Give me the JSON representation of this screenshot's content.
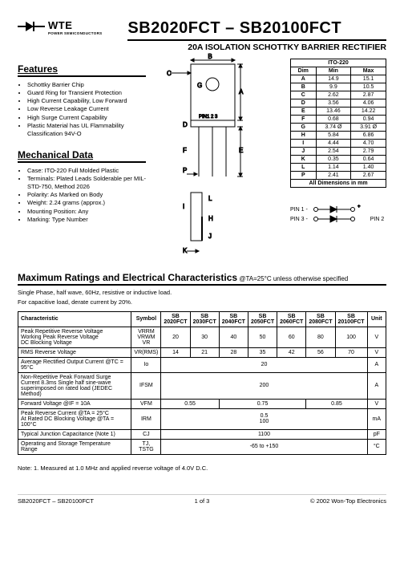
{
  "logo": {
    "brand": "WTE",
    "subtitle": "POWER SEMICONDUCTORS"
  },
  "title": {
    "range": "SB2020FCT – SB20100FCT",
    "subtitle": "20A ISOLATION SCHOTTKY BARRIER RECTIFIER"
  },
  "features": {
    "heading": "Features",
    "items": [
      "Schottky Barrier Chip",
      "Guard Ring for Transient Protection",
      "High Current Capability, Low Forward",
      "Low Reverse Leakage Current",
      "High Surge Current Capability",
      "Plastic Material has UL Flammability Classification 94V-O"
    ]
  },
  "mechanical": {
    "heading": "Mechanical Data",
    "items": [
      "Case: ITO-220 Full Molded Plastic",
      "Terminals: Plated Leads Solderable per MIL-STD-750, Method 2026",
      "Polarity: As Marked on Body",
      "Weight: 2.24 grams (approx.)",
      "Mounting Position: Any",
      "Marking: Type Number"
    ]
  },
  "dims": {
    "package": "ITO-220",
    "header": [
      "Dim",
      "Min",
      "Max"
    ],
    "rows": [
      [
        "A",
        "14.9",
        "15.1"
      ],
      [
        "B",
        "9.9",
        "10.5"
      ],
      [
        "C",
        "2.62",
        "2.87"
      ],
      [
        "D",
        "3.56",
        "4.06"
      ],
      [
        "E",
        "13.46",
        "14.22"
      ],
      [
        "F",
        "0.68",
        "0.94"
      ],
      [
        "G",
        "3.74 Ø",
        "3.91 Ø"
      ],
      [
        "H",
        "5.84",
        "6.86"
      ],
      [
        "I",
        "4.44",
        "4.70"
      ],
      [
        "J",
        "2.54",
        "2.79"
      ],
      [
        "K",
        "0.35",
        "0.64"
      ],
      [
        "L",
        "1.14",
        "1.40"
      ],
      [
        "P",
        "2.41",
        "2.67"
      ]
    ],
    "footer": "All Dimensions in mm"
  },
  "pins": {
    "pin1": "PIN 1 -",
    "pin3": "PIN 3 -",
    "pin2": "PIN 2"
  },
  "maxratings": {
    "heading": "Maximum Ratings and Electrical Characteristics",
    "cond": " @TA=25°C unless otherwise specified",
    "note1": "Single Phase, half wave, 60Hz, resistive or inductive load.",
    "note2": "For capacitive load, derate current by 20%."
  },
  "table": {
    "header": {
      "char": "Characteristic",
      "sym": "Symbol",
      "parts": [
        "SB 2020FCT",
        "SB 2030FCT",
        "SB 2040FCT",
        "SB 2050FCT",
        "SB 2060FCT",
        "SB 2080FCT",
        "SB 20100FCT"
      ],
      "unit": "Unit"
    },
    "rows": [
      {
        "char": "Peak Repetitive Reverse Voltage\nWorking Peak Reverse Voltage\nDC Blocking Voltage",
        "sym": "VRRM\nVRWM\nVR",
        "vals": [
          "20",
          "30",
          "40",
          "50",
          "60",
          "80",
          "100"
        ],
        "unit": "V"
      },
      {
        "char": "RMS Reverse Voltage",
        "sym": "VR(RMS)",
        "vals": [
          "14",
          "21",
          "28",
          "35",
          "42",
          "56",
          "70"
        ],
        "unit": "V"
      },
      {
        "char": "Average Rectified Output Current   @TC = 95°C",
        "sym": "Io",
        "span": "20",
        "unit": "A"
      },
      {
        "char": "Non-Repetitive Peak Forward Surge Current 8.3ms Single half sine-wave superimposed on rated load (JEDEC Method)",
        "sym": "IFSM",
        "span": "200",
        "unit": "A"
      },
      {
        "char": "Forward Voltage                           @IF = 10A",
        "sym": "VFM",
        "groups": [
          [
            "0.55",
            2
          ],
          [
            "0.75",
            3
          ],
          [
            "0.85",
            2
          ]
        ],
        "unit": "V"
      },
      {
        "char": "Peak Reverse Current            @TA = 25°C\nAt Rated DC Blocking Voltage   @TA = 100°C",
        "sym": "IRM",
        "span": "0.5\n100",
        "unit": "mA"
      },
      {
        "char": "Typical Junction Capacitance (Note 1)",
        "sym": "CJ",
        "span": "1100",
        "unit": "pF"
      },
      {
        "char": "Operating and Storage Temperature Range",
        "sym": "TJ, TSTG",
        "span": "-65 to +150",
        "unit": "°C"
      }
    ]
  },
  "footnote": "Note:  1. Measured at 1.0 MHz and applied reverse voltage of 4.0V D.C.",
  "footer": {
    "left": "SB2020FCT – SB20100FCT",
    "center": "1 of 3",
    "right": "© 2002 Won-Top Electronics"
  }
}
